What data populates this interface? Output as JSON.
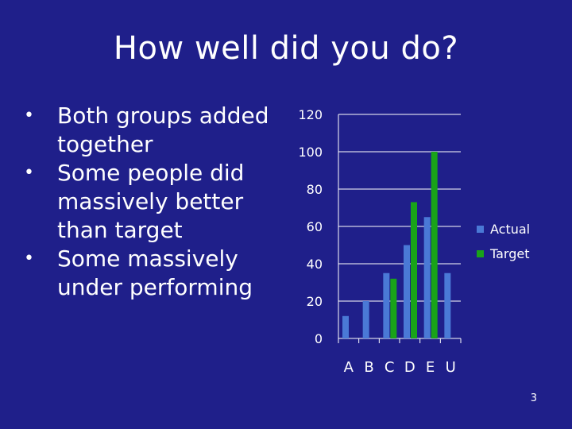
{
  "slide": {
    "title": "How well did you do?",
    "bullets": [
      "Both groups added together",
      "Some people did massively better than target",
      "Some massively under performing"
    ],
    "page_number": "3"
  },
  "colors": {
    "background": "#1f1f8a",
    "actual": "#4a79d6",
    "target": "#19a319",
    "text": "#ffffff"
  },
  "chart_data": {
    "type": "bar",
    "categories": [
      "A",
      "B",
      "C",
      "D",
      "E",
      "U"
    ],
    "series": [
      {
        "name": "Actual",
        "values": [
          12,
          20,
          35,
          50,
          65,
          35
        ]
      },
      {
        "name": "Target",
        "values": [
          null,
          null,
          32,
          73,
          100,
          null
        ]
      }
    ],
    "yticks": [
      "0",
      "20",
      "40",
      "60",
      "80",
      "100",
      "120"
    ],
    "ylim": [
      0,
      120
    ],
    "grid": true,
    "legend": "right"
  }
}
